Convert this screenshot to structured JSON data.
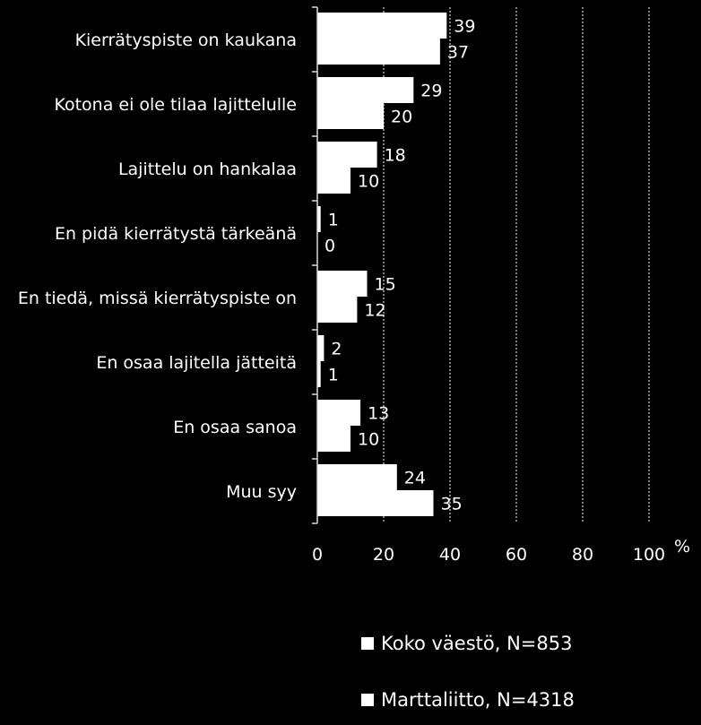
{
  "chart_data": {
    "type": "bar",
    "orientation": "horizontal",
    "categories": [
      "Kierrätyspiste on kaukana",
      "Kotona ei ole tilaa lajittelulle",
      "Lajittelu on hankalaa",
      "En pidä kierrätystä tärkeänä",
      "En tiedä, missä kierrätyspiste on",
      "En osaa lajitella jätteitä",
      "En osaa sanoa",
      "Muu syy"
    ],
    "series": [
      {
        "name": "Koko väestö, N=853",
        "values": [
          39,
          29,
          18,
          1,
          15,
          2,
          13,
          24
        ]
      },
      {
        "name": "Marttaliitto, N=4318",
        "values": [
          37,
          20,
          10,
          0,
          12,
          1,
          10,
          35
        ]
      }
    ],
    "xlim": [
      0,
      100
    ],
    "x_ticks": [
      "0",
      "20",
      "40",
      "60",
      "80",
      "100"
    ],
    "xlabel": "%",
    "grid": "vertical dotted",
    "legend_position": "bottom",
    "colors": {
      "background": "#000000",
      "bars": "#ffffff",
      "text": "#ffffff"
    }
  },
  "legend": {
    "items": [
      "Koko väestö, N=853",
      "Marttaliitto, N=4318"
    ]
  }
}
